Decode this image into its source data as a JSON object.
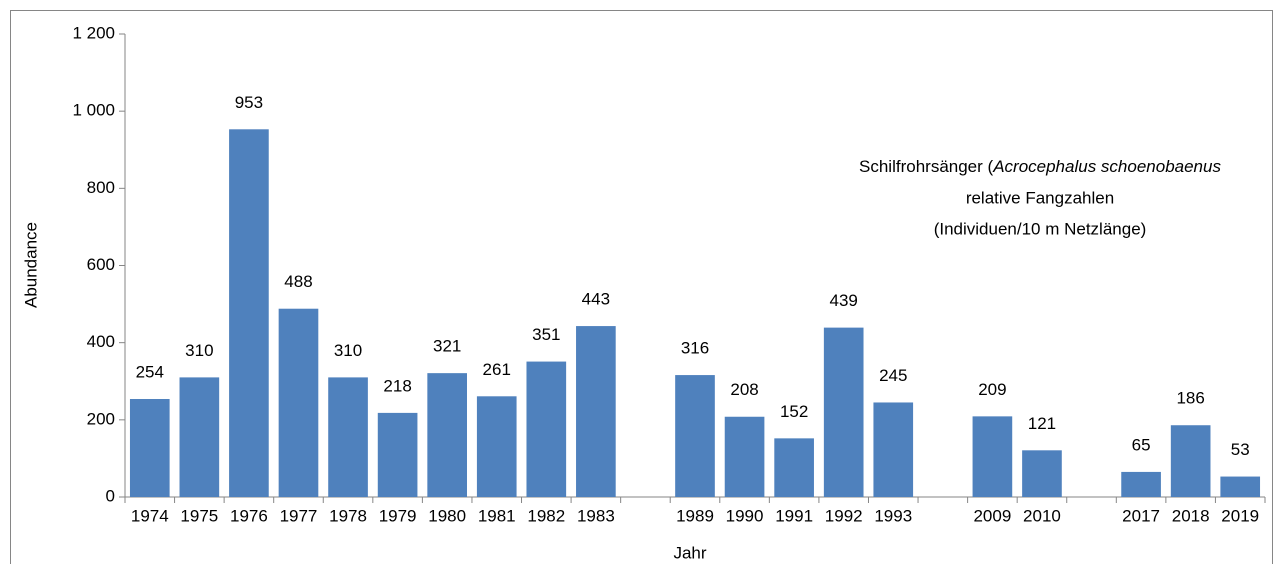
{
  "chart_data": {
    "type": "bar",
    "annotation": {
      "lines": [
        [
          "Schilfrohrsänger (",
          "Acrocephalus schoenobaenus"
        ],
        [
          "relative Fangzahlen"
        ],
        [
          "(Individuen/10 m Netzlänge)"
        ]
      ]
    },
    "x_label": "Jahr",
    "y_label": "Abundance",
    "categories": [
      "1974",
      "1975",
      "1976",
      "1977",
      "1978",
      "1979",
      "1980",
      "1981",
      "1982",
      "1983",
      null,
      "1989",
      "1990",
      "1991",
      "1992",
      "1993",
      null,
      "2009",
      "2010",
      null,
      "2017",
      "2018",
      "2019"
    ],
    "values": [
      254,
      310,
      953,
      488,
      310,
      218,
      321,
      261,
      351,
      443,
      null,
      316,
      208,
      152,
      439,
      245,
      null,
      209,
      121,
      null,
      65,
      186,
      53
    ],
    "color": "#4f81bd",
    "ylim": [
      0,
      1200
    ],
    "yticks": [
      0,
      200,
      400,
      600,
      800,
      {
        "value": 1000,
        "label": "1 000"
      },
      {
        "value": 1200,
        "label": "1 200"
      }
    ],
    "grid": false
  }
}
